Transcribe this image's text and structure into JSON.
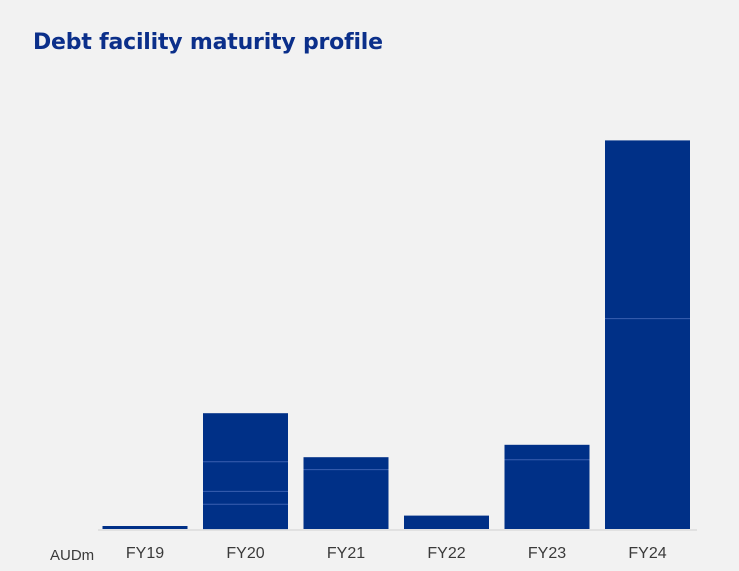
{
  "chart_data": {
    "type": "bar",
    "stacked": true,
    "title": "Debt facility maturity profile",
    "unit_label": "AUDm",
    "categories": [
      "FY19",
      "FY20",
      "FY21",
      "FY22",
      "FY23",
      "FY24"
    ],
    "segments": [
      [
        6
      ],
      [
        50,
        26,
        60,
        98
      ],
      [
        120,
        25
      ],
      [
        27
      ],
      [
        140,
        30
      ],
      [
        425,
        360
      ]
    ],
    "totals": [
      6,
      234,
      145,
      27,
      170,
      785
    ],
    "ylim": [
      0,
      800
    ],
    "grid": false,
    "legend": "none",
    "bar_color": "#003087"
  }
}
